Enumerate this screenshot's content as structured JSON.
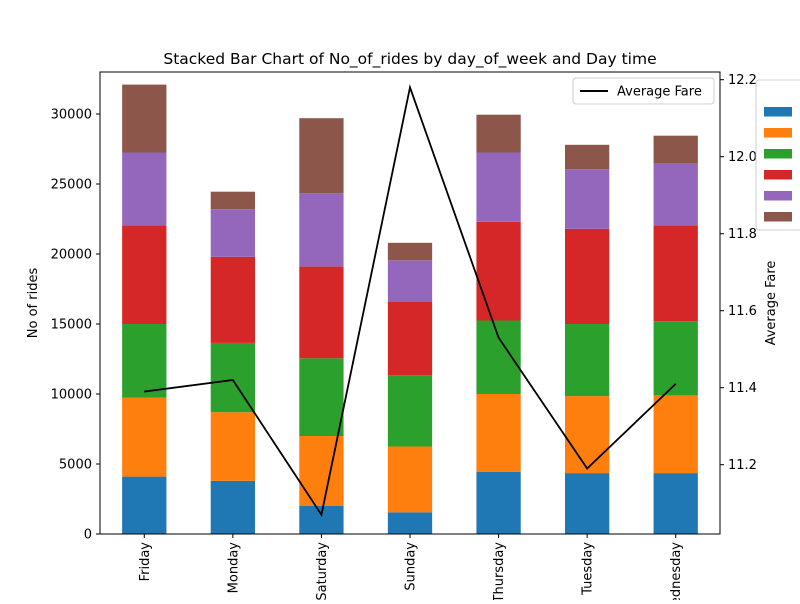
{
  "chart_data": {
    "type": "bar",
    "stacked": true,
    "title": "Stacked Bar Chart of No_of_rides by day_of_week and Day time",
    "xlabel": "",
    "ylabel": "No of rides",
    "y2label": "Average Fare",
    "categories": [
      "Friday",
      "Monday",
      "Saturday",
      "Sunday",
      "Thursday",
      "Tuesday",
      "Wednesday"
    ],
    "ylim": [
      0,
      33000
    ],
    "yticks": [
      0,
      5000,
      10000,
      15000,
      20000,
      25000,
      30000
    ],
    "y2lim": [
      11.02,
      12.22
    ],
    "y2ticks": [
      11.2,
      11.4,
      11.6,
      11.8,
      12.0,
      12.2
    ],
    "series": [
      {
        "color": "#1f77b4",
        "values": [
          4100,
          3800,
          2000,
          1550,
          4450,
          4350,
          4350
        ]
      },
      {
        "color": "#ff7f0e",
        "values": [
          5650,
          4900,
          5000,
          4700,
          5550,
          5500,
          5550
        ]
      },
      {
        "color": "#2ca02c",
        "values": [
          5250,
          4950,
          5550,
          5100,
          5250,
          5150,
          5300
        ]
      },
      {
        "color": "#d62728",
        "values": [
          7050,
          6150,
          6550,
          5250,
          7050,
          6800,
          6850
        ]
      },
      {
        "color": "#9467bd",
        "values": [
          5200,
          3400,
          5250,
          2950,
          4950,
          4250,
          4400
        ]
      },
      {
        "color": "#8c564b",
        "values": [
          4850,
          1250,
          5350,
          1250,
          2700,
          1750,
          2000
        ]
      }
    ],
    "line_series": {
      "name": "Average Fare",
      "color": "#000000",
      "values": [
        11.39,
        11.42,
        11.07,
        12.18,
        11.53,
        11.19,
        11.41
      ]
    },
    "legend_line_position": "top-right",
    "second_legend_position": "outside-right",
    "grid": false
  }
}
